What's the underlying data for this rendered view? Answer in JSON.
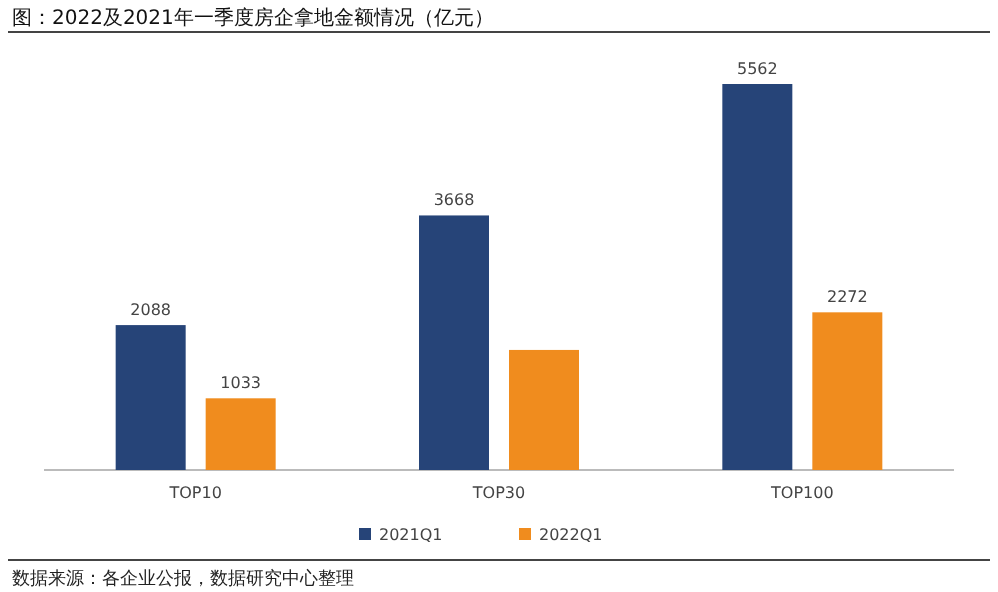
{
  "chart_data": {
    "type": "bar",
    "title": "图：2022及2021年一季度房企拿地金额情况（亿元）",
    "categories": [
      "TOP10",
      "TOP30",
      "TOP100"
    ],
    "series": [
      {
        "name": "2021Q1",
        "color": "#264478",
        "values": [
          2088,
          3668,
          5562
        ],
        "value_labels": [
          "2088",
          "3668",
          "5562"
        ]
      },
      {
        "name": "2022Q1",
        "color": "#f08c1e",
        "values": [
          1033,
          1730,
          2272
        ],
        "value_labels": [
          "1033",
          null,
          "2272"
        ]
      }
    ],
    "legend": "bottom",
    "annotations": [
      "数据来源：各企业公报，数据研究中心整理"
    ]
  }
}
